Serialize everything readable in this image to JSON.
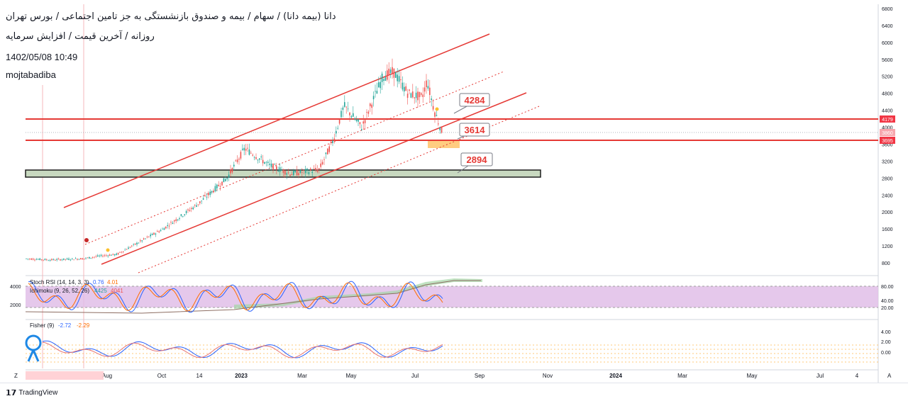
{
  "header": {
    "title": "دانا (بیمه دانا) / سهام / بیمه و صندوق بازنشستگی به جز تامین اجتماعی / بورس تهران",
    "subtitle": "روزانه / آخرین قیمت / افزایش سرمایه",
    "datetime": "1402/05/08 10:49",
    "author": "mojtabadiba"
  },
  "price_axis": {
    "ticks": [
      "6800",
      "6400",
      "6000",
      "5600",
      "5200",
      "4800",
      "4400",
      "4000",
      "3600",
      "3200",
      "2800",
      "2400",
      "2000",
      "1600",
      "1200",
      "800"
    ],
    "badges": [
      {
        "label": "4179",
        "color": "#f23645"
      },
      {
        "label": "3860",
        "color": "#f7a6ad"
      },
      {
        "label": "3695",
        "color": "#f23645"
      }
    ]
  },
  "annotations": {
    "callout_high": "4284",
    "callout_mid": "3614",
    "callout_low": "2894"
  },
  "stoch_panel": {
    "legend_stoch": "Stoch RSI (14, 14, 3, 3)",
    "stoch_k": "0.76",
    "stoch_d": "4.01",
    "legend_ichimoku": "Ichimoku (9, 26, 52, 26)",
    "ichi_a": "4425",
    "ichi_b": "4041",
    "left_ticks": [
      "4000",
      "2000"
    ],
    "right_ticks": [
      "80.00",
      "40.00",
      "20.00"
    ]
  },
  "fisher_panel": {
    "legend": "Fisher (9)",
    "v1": "-2.72",
    "v2": "-2.29",
    "right_ticks": [
      "4.00",
      "2.00",
      "0.00"
    ]
  },
  "time_axis": {
    "labels": [
      "Aug",
      "Oct",
      "14",
      "2023",
      "Mar",
      "May",
      "Jul",
      "Sep",
      "Nov",
      "2024",
      "Mar",
      "May",
      "Jul",
      "4"
    ],
    "left_btn": "Z",
    "right_btn": "A"
  },
  "footer": {
    "brand": "TradingView"
  },
  "colors": {
    "channel": "#e53935",
    "bull": "#26a69a",
    "bear": "#ef5350",
    "support_zone": "#c8d9c0",
    "rsi_band": "#e1bee7"
  },
  "chart_data": {
    "type": "candlestick",
    "title": "",
    "y_axis_ticks": [
      800,
      1200,
      1600,
      2000,
      2400,
      2800,
      3200,
      3600,
      4000,
      4400,
      4800,
      5200,
      5600,
      6000,
      6400,
      6800
    ],
    "x_axis_labels": [
      "Aug",
      "Oct",
      "14",
      "2023",
      "Mar",
      "May",
      "Jul",
      "Sep",
      "Nov",
      "2024",
      "Mar",
      "May",
      "Jul",
      "4"
    ],
    "horizontal_levels": [
      4179,
      3695
    ],
    "price_labels": [
      4284,
      3614,
      2894
    ],
    "close_path": [
      {
        "x": "Jun",
        "y": 900
      },
      {
        "x": "Jul",
        "y": 880
      },
      {
        "x": "Aug",
        "y": 1050
      },
      {
        "x": "Sep",
        "y": 1150
      },
      {
        "x": "Oct",
        "y": 1500
      },
      {
        "x": "Nov",
        "y": 2200
      },
      {
        "x": "Dec",
        "y": 2700
      },
      {
        "x": "Jan",
        "y": 3500
      },
      {
        "x": "Feb",
        "y": 3100
      },
      {
        "x": "Mar",
        "y": 2900
      },
      {
        "x": "Apr",
        "y": 3400
      },
      {
        "x": "May",
        "y": 4500
      },
      {
        "x": "Jun",
        "y": 5300
      },
      {
        "x": "Jun",
        "y": 4800
      },
      {
        "x": "Jul",
        "y": 5100
      },
      {
        "x": "Jul",
        "y": 3800
      }
    ]
  }
}
